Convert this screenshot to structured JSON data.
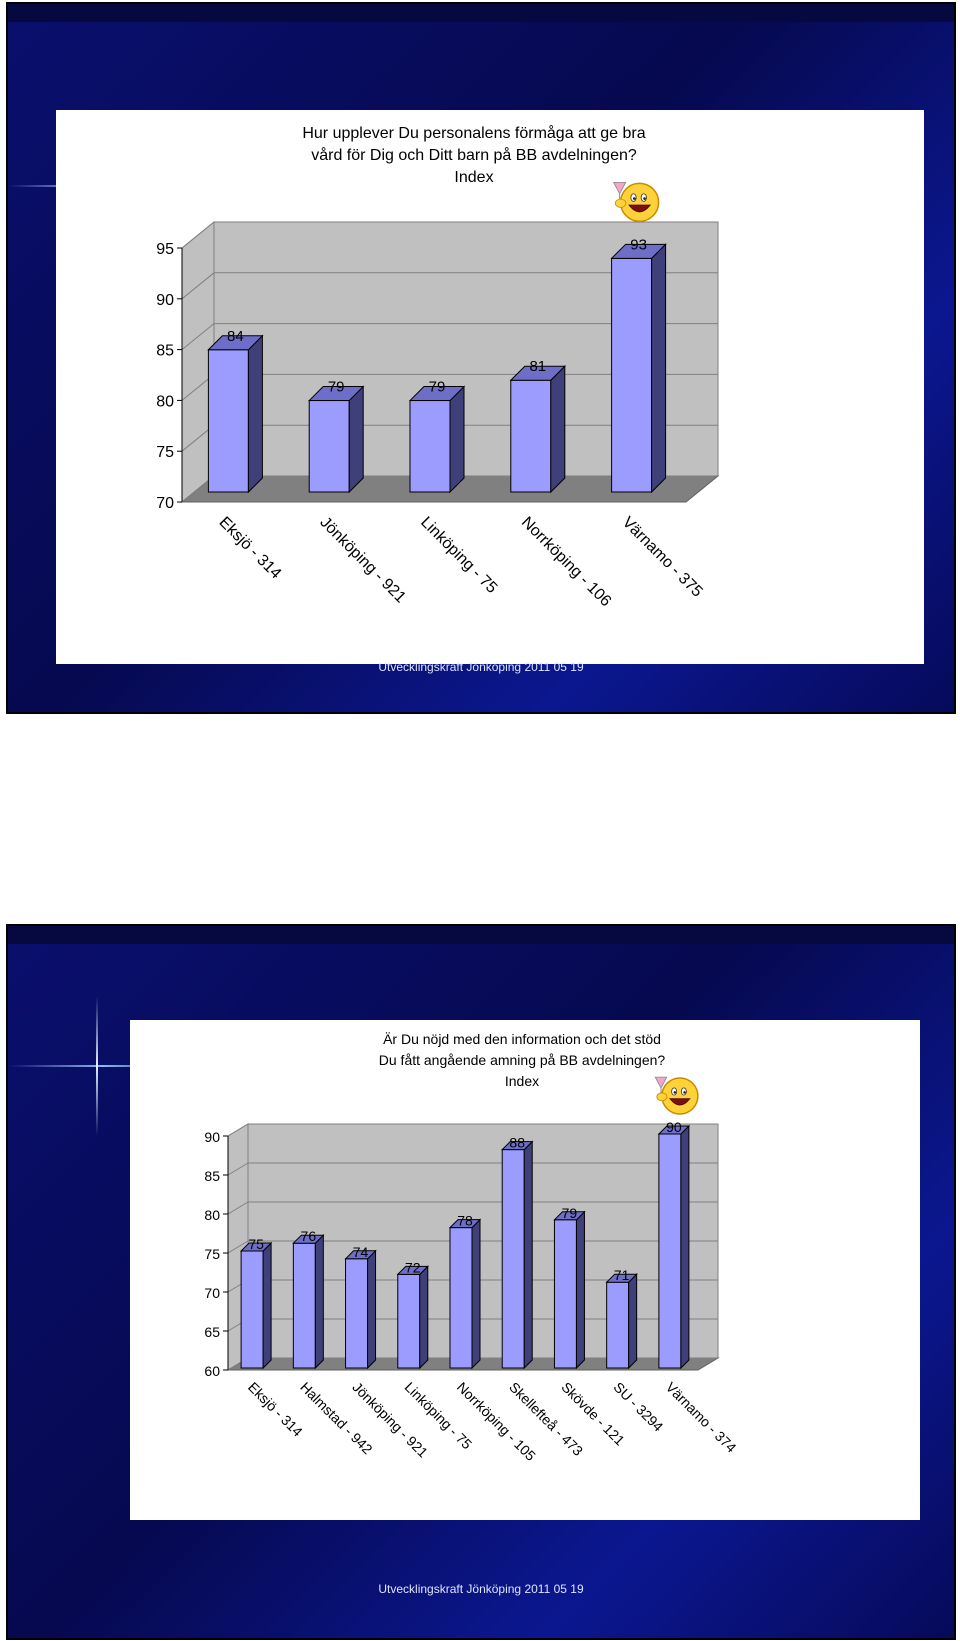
{
  "slides": [
    {
      "footer": "Utvecklingskraft Jönköping 2011 05 19"
    },
    {
      "footer": "Utvecklingskraft Jönköping 2011 05 19"
    }
  ],
  "chart_data": [
    {
      "type": "bar",
      "title": "Hur upplever Du personalens förmåga att ge bra vård för Dig och Ditt barn på BB avdelningen?",
      "title_lines": [
        "Hur upplever Du personalens förmåga att ge bra",
        "vård för Dig och Ditt barn på BB avdelningen?",
        "Index"
      ],
      "categories": [
        "Eksjö - 314",
        "Jönköping - 921",
        "Linköping - 75",
        "Norrköping - 106",
        "Värnamo - 375"
      ],
      "values": [
        84,
        79,
        79,
        81,
        93
      ],
      "data_labels": [
        "84",
        "79",
        "79",
        "81",
        "93"
      ],
      "yticks": [
        "70",
        "75",
        "80",
        "85",
        "90",
        "95"
      ],
      "ylim": [
        70,
        95
      ],
      "xlabel": "",
      "ylabel": "",
      "grid": true,
      "three_d": true,
      "bar_color": "#9c9cff",
      "bar_side_color": "#3f3f7a",
      "bar_top_color": "#6e6ec8",
      "wall_color": "#c0c0c0",
      "floor_color": "#808080",
      "highlight_icon": "smiley-toast-icon",
      "highlight_index": 4
    },
    {
      "type": "bar",
      "title": "Är Du nöjd med den information och det stöd Du fått angående amning på BB avdelningen?",
      "title_lines": [
        "Är Du nöjd med den information och det stöd",
        "Du  fått angående amning på BB avdelningen?",
        "Index"
      ],
      "categories": [
        "Eksjö - 314",
        "Halmstad - 942",
        "Jönköping - 921",
        "Linköping - 75",
        "Norrköping - 105",
        "Skellefteå - 473",
        "Skövde - 121",
        "SU - 3294",
        "Värnamo - 374"
      ],
      "values": [
        75,
        76,
        74,
        72,
        78,
        88,
        79,
        71,
        90
      ],
      "data_labels": [
        "75",
        "76",
        "74",
        "72",
        "78",
        "88",
        "79",
        "71",
        "90"
      ],
      "yticks": [
        "60",
        "65",
        "70",
        "75",
        "80",
        "85",
        "90"
      ],
      "ylim": [
        60,
        90
      ],
      "xlabel": "",
      "ylabel": "",
      "grid": true,
      "three_d": true,
      "bar_color": "#9c9cff",
      "bar_side_color": "#3f3f7a",
      "bar_top_color": "#6e6ec8",
      "wall_color": "#c0c0c0",
      "floor_color": "#808080",
      "highlight_icon": "smiley-toast-icon",
      "highlight_index": 8
    }
  ]
}
